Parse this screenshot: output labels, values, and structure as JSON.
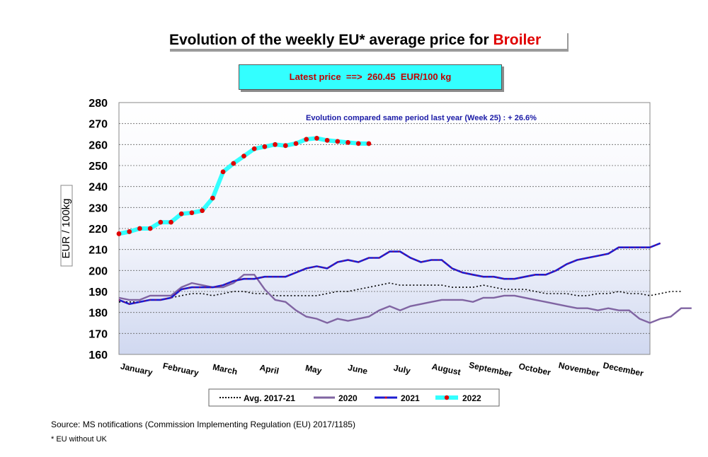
{
  "title": {
    "prefix": "Evolution  of the weekly EU* average price for ",
    "highlight": "Broiler"
  },
  "latest_price": "Latest price  ==>  260.45  EUR/100 kg",
  "source": "Source: MS notifications (Commission Implementing Regulation (EU) 2017/1185)",
  "footnote": "* EU without UK",
  "chart_data": {
    "type": "line",
    "ylabel": "EUR / 100kg",
    "annotation": "Evolution compared same period last year   (Week 25) : + 26.6%",
    "ylim": [
      160,
      280
    ],
    "y_ticks": [
      160,
      170,
      180,
      190,
      200,
      210,
      220,
      230,
      240,
      250,
      260,
      270,
      280
    ],
    "x_range": [
      1,
      52
    ],
    "month_labels": [
      "January",
      "February",
      "March",
      "April",
      "May",
      "June",
      "July",
      "August",
      "September",
      "October",
      "November",
      "December"
    ],
    "grid": "horizontal dashed",
    "legend_position": "bottom",
    "series": [
      {
        "name": "Avg. 2017-21",
        "color": "#000000",
        "values": [
          185,
          185,
          185,
          186,
          186,
          187,
          188,
          189,
          189,
          188,
          189,
          190,
          190,
          189,
          189,
          188,
          188,
          188,
          188,
          188,
          189,
          190,
          190,
          191,
          192,
          193,
          194,
          193,
          193,
          193,
          193,
          193,
          192,
          192,
          192,
          193,
          192,
          191,
          191,
          191,
          190,
          189,
          189,
          189,
          188,
          188,
          189,
          189,
          190,
          189,
          189,
          188,
          189,
          190,
          190
        ]
      },
      {
        "name": "2020",
        "color": "#8064a2",
        "values": [
          187,
          186,
          186,
          188,
          188,
          188,
          192,
          194,
          193,
          192,
          192,
          194,
          198,
          198,
          191,
          186,
          185,
          181,
          178,
          177,
          175,
          177,
          176,
          177,
          178,
          181,
          183,
          181,
          183,
          184,
          185,
          186,
          186,
          186,
          185,
          187,
          187,
          188,
          188,
          187,
          186,
          185,
          184,
          183,
          182,
          182,
          181,
          182,
          181,
          181,
          177,
          175,
          177,
          178,
          182,
          182
        ]
      },
      {
        "name": "2021",
        "color": "#1c1cd0",
        "values": [
          186,
          184,
          185,
          186,
          186,
          187,
          191,
          192,
          192,
          192,
          193,
          195,
          196,
          196,
          197,
          197,
          197,
          199,
          201,
          202,
          201,
          204,
          205,
          204,
          206,
          206,
          209,
          209,
          206,
          204,
          205,
          205,
          201,
          199,
          198,
          197,
          197,
          196,
          196,
          197,
          198,
          198,
          200,
          203,
          205,
          206,
          207,
          208,
          211,
          211,
          211,
          211,
          213
        ]
      },
      {
        "name": "2022",
        "color": "#33ffff",
        "marker_color": "#e00000",
        "values": [
          217.5,
          218.5,
          220,
          220,
          223,
          223,
          227,
          227.5,
          228.5,
          234.5,
          247,
          251,
          254.5,
          258,
          259,
          260,
          259.5,
          260.5,
          262.5,
          263,
          262,
          261.5,
          261,
          260.5,
          260.45
        ]
      }
    ]
  }
}
